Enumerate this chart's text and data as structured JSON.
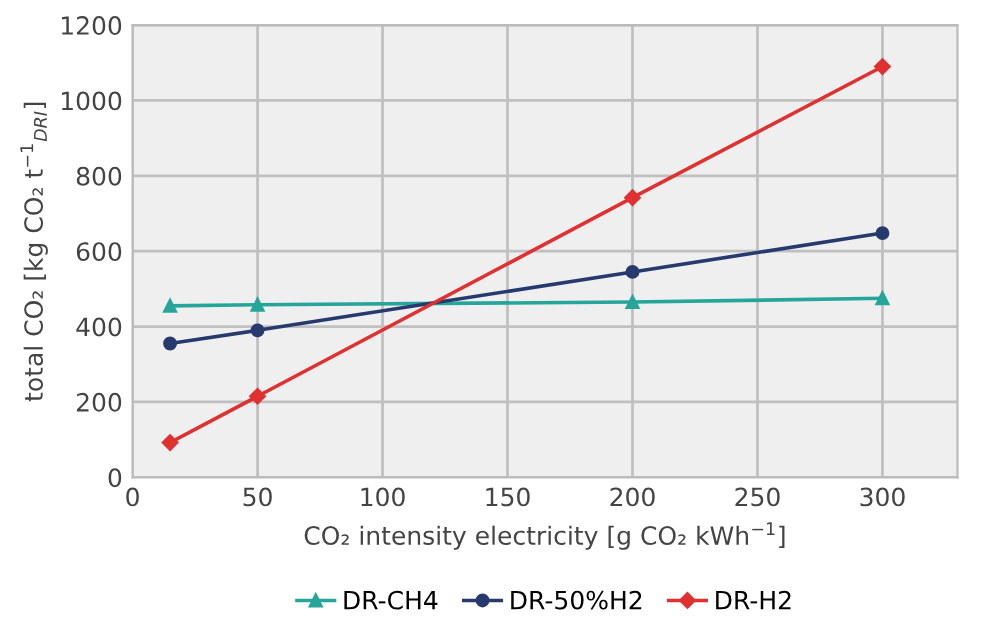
{
  "chart_data": {
    "type": "line",
    "xlabel": "CO₂ intensity electricity [g CO₂ kWh$^{−1}$]",
    "ylabel": "total CO₂ [kg CO₂ t$^{−1}$$_{DRI}$]",
    "x": [
      15,
      50,
      200,
      300
    ],
    "xlim": [
      0,
      330
    ],
    "xticks": [
      0,
      50,
      100,
      150,
      200,
      250,
      300
    ],
    "ylim": [
      0,
      1200
    ],
    "yticks": [
      0,
      200,
      400,
      600,
      800,
      1000,
      1200
    ],
    "grid": true,
    "legend": "bottom",
    "series": [
      {
        "name": "DR-CH4",
        "color": "#26a69a",
        "marker": "triangle",
        "values": [
          455,
          458,
          465,
          475
        ]
      },
      {
        "name": "DR-50%H2",
        "color": "#263a6e",
        "marker": "circle",
        "values": [
          355,
          390,
          545,
          648
        ]
      },
      {
        "name": "DR-H2",
        "color": "#e03030",
        "marker": "diamond",
        "values": [
          92,
          215,
          742,
          1090
        ]
      }
    ]
  }
}
